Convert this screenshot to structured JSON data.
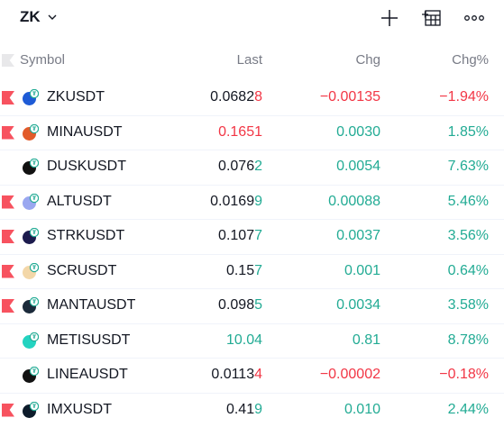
{
  "header": {
    "list_name": "ZK",
    "icons": [
      "plus-icon",
      "table-icon",
      "more-icon"
    ]
  },
  "columns": {
    "symbol": "Symbol",
    "last": "Last",
    "chg": "Chg",
    "chgp": "Chg%"
  },
  "colors": {
    "up": "#22ab94",
    "down": "#f23645",
    "flag": "#f7525f"
  },
  "rows": [
    {
      "symbol": "ZKUSDT",
      "flag": true,
      "logo_color": "#1e5bd6",
      "last_main": "0.0682",
      "last_tail": "8",
      "last_color": "neutral",
      "tail_color": "down",
      "chg": "−0.00135",
      "chgp": "−1.94%",
      "dir": "down"
    },
    {
      "symbol": "MINAUSDT",
      "flag": true,
      "logo_color": "#e25b2a",
      "last_main": "0.1651",
      "last_tail": "",
      "last_color": "down",
      "tail_color": "down",
      "chg": "0.0030",
      "chgp": "1.85%",
      "dir": "up"
    },
    {
      "symbol": "DUSKUSDT",
      "flag": false,
      "logo_color": "#111111",
      "last_main": "0.076",
      "last_tail": "2",
      "last_color": "neutral",
      "tail_color": "up",
      "chg": "0.0054",
      "chgp": "7.63%",
      "dir": "up"
    },
    {
      "symbol": "ALTUSDT",
      "flag": true,
      "logo_color": "#9aa7f0",
      "last_main": "0.0169",
      "last_tail": "9",
      "last_color": "neutral",
      "tail_color": "up",
      "chg": "0.00088",
      "chgp": "5.46%",
      "dir": "up"
    },
    {
      "symbol": "STRKUSDT",
      "flag": true,
      "logo_color": "#1c1b4d",
      "last_main": "0.107",
      "last_tail": "7",
      "last_color": "neutral",
      "tail_color": "up",
      "chg": "0.0037",
      "chgp": "3.56%",
      "dir": "up"
    },
    {
      "symbol": "SCRUSDT",
      "flag": true,
      "logo_color": "#f3d7a8",
      "last_main": "0.15",
      "last_tail": "7",
      "last_color": "neutral",
      "tail_color": "up",
      "chg": "0.001",
      "chgp": "0.64%",
      "dir": "up"
    },
    {
      "symbol": "MANTAUSDT",
      "flag": true,
      "logo_color": "#1b2a3a",
      "last_main": "0.098",
      "last_tail": "5",
      "last_color": "neutral",
      "tail_color": "up",
      "chg": "0.0034",
      "chgp": "3.58%",
      "dir": "up"
    },
    {
      "symbol": "METISUSDT",
      "flag": false,
      "logo_color": "#23d3c0",
      "last_main": "10.04",
      "last_tail": "",
      "last_color": "up",
      "tail_color": "up",
      "chg": "0.81",
      "chgp": "8.78%",
      "dir": "up"
    },
    {
      "symbol": "LINEAUSDT",
      "flag": false,
      "logo_color": "#121212",
      "last_main": "0.0113",
      "last_tail": "4",
      "last_color": "neutral",
      "tail_color": "down",
      "chg": "−0.00002",
      "chgp": "−0.18%",
      "dir": "down"
    },
    {
      "symbol": "IMXUSDT",
      "flag": true,
      "logo_color": "#0d1b2a",
      "last_main": "0.41",
      "last_tail": "9",
      "last_color": "neutral",
      "tail_color": "up",
      "chg": "0.010",
      "chgp": "2.44%",
      "dir": "up"
    }
  ]
}
